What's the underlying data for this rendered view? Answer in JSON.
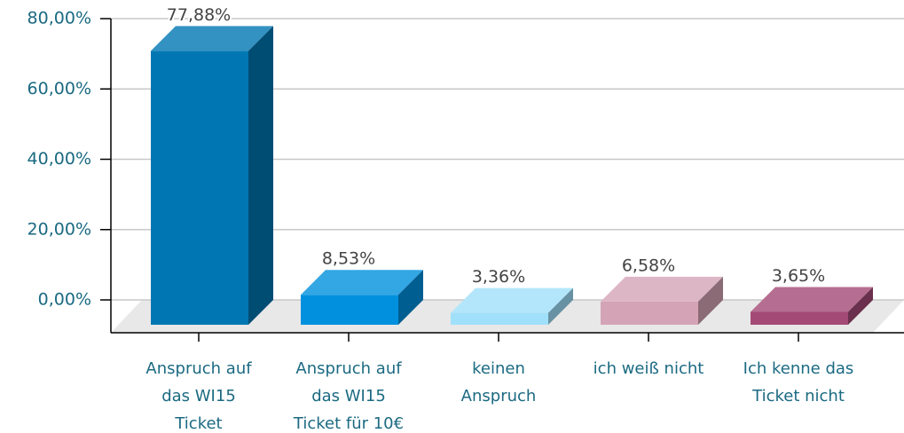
{
  "chart_data": {
    "type": "bar3d",
    "categories": [
      "Anspruch auf das WI15 Ticket",
      "Anspruch auf das WI15 Ticket für 10€",
      "keinen Anspruch",
      "ich weiß nicht",
      "Ich kenne das Ticket nicht"
    ],
    "values": [
      77.88,
      8.53,
      3.36,
      6.58,
      3.65
    ],
    "value_labels": [
      "77,88%",
      "8,53%",
      "3,36%",
      "6,58%",
      "3,65%"
    ],
    "colors": [
      "#0077b3",
      "#0090dd",
      "#a0e0fa",
      "#d4a4b6",
      "#a34a76"
    ],
    "ylim": [
      0,
      80
    ],
    "yticks": [
      {
        "value": 0,
        "label": "0,00%"
      },
      {
        "value": 20,
        "label": "20,00%"
      },
      {
        "value": 40,
        "label": "40,00%"
      },
      {
        "value": 60,
        "label": "60,00%"
      },
      {
        "value": 80,
        "label": "80,00%"
      }
    ],
    "grid": true
  }
}
